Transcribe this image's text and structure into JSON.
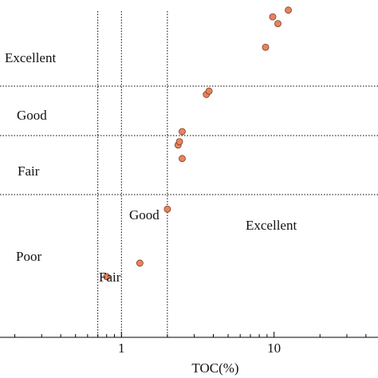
{
  "chart_data": {
    "type": "scatter",
    "title": "",
    "xlabel": "TOC(%)",
    "ylabel": "",
    "x_scale": "log",
    "xlim": [
      0.16,
      48
    ],
    "x_ticks": [
      1,
      10
    ],
    "x_tick_labels": [
      "1",
      "10"
    ],
    "x_thresholds": [
      0.7,
      1.0,
      2.0
    ],
    "y_axis_visible": false,
    "grid": false,
    "legend": "none",
    "row_labels": [
      "Excellent",
      "Good",
      "Fair",
      "Poor"
    ],
    "zone_labels": [
      "Good",
      "Excellent",
      "Fair"
    ],
    "points": [
      {
        "x": 0.8,
        "y": 0.18
      },
      {
        "x": 1.32,
        "y": 0.22
      },
      {
        "x": 2.0,
        "y": 0.38
      },
      {
        "x": 2.5,
        "y": 0.53
      },
      {
        "x": 2.35,
        "y": 0.57
      },
      {
        "x": 2.4,
        "y": 0.58
      },
      {
        "x": 2.5,
        "y": 0.61
      },
      {
        "x": 3.6,
        "y": 0.72
      },
      {
        "x": 3.75,
        "y": 0.73
      },
      {
        "x": 8.8,
        "y": 0.86
      },
      {
        "x": 10.6,
        "y": 0.93
      },
      {
        "x": 9.8,
        "y": 0.95
      },
      {
        "x": 12.4,
        "y": 0.97
      }
    ],
    "colors": {
      "point_fill": "#e8835e",
      "point_stroke": "#7a3a22",
      "line": "#000000"
    }
  }
}
